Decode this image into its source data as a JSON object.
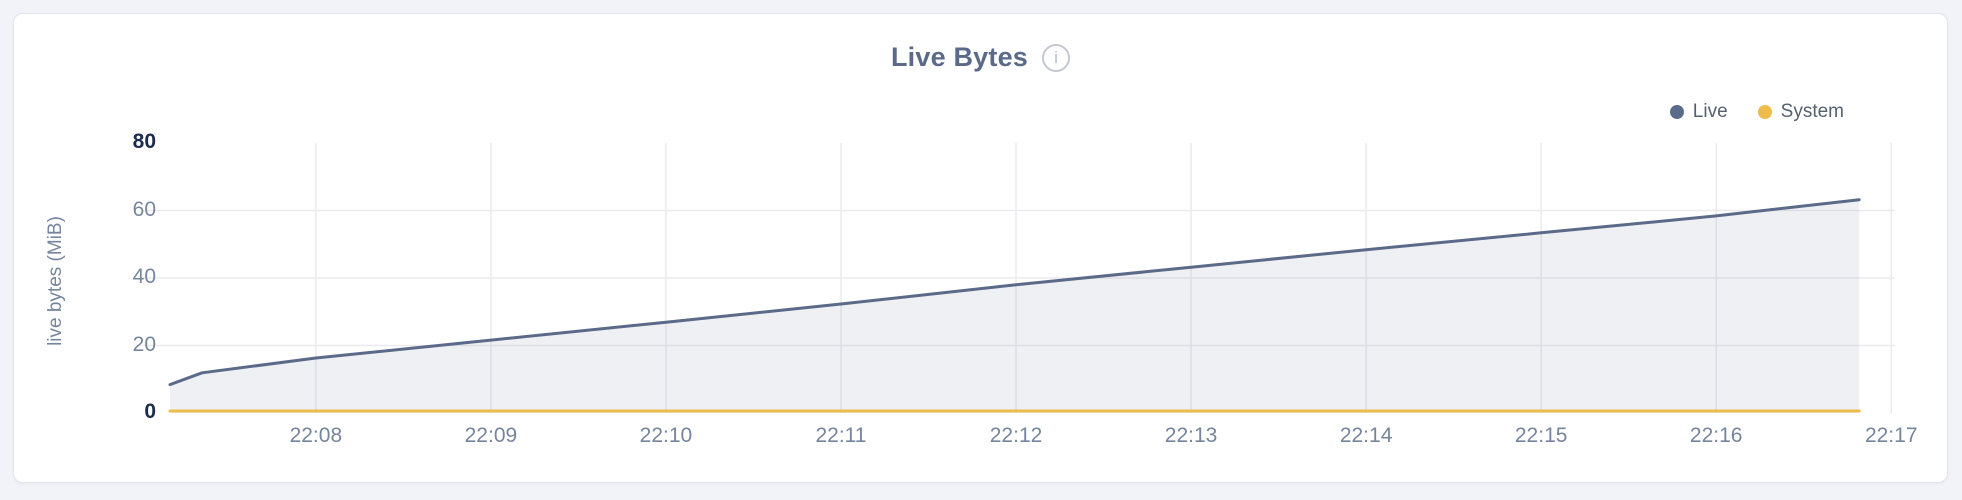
{
  "window": {
    "background": "#f2f3f8"
  },
  "card": {
    "background": "#ffffff",
    "border_color": "#e4e5e9"
  },
  "header": {
    "title": "Live Bytes",
    "info_glyph": "i"
  },
  "legend": {
    "items": [
      {
        "label": "Live",
        "color": "#5b6b8a"
      },
      {
        "label": "System",
        "color": "#edbc4c"
      }
    ]
  },
  "chart_data": {
    "type": "area",
    "title": "Live Bytes",
    "xlabel": "",
    "ylabel": "live bytes (MiB)",
    "ylim": [
      0,
      80
    ],
    "y_ticks": [
      0,
      20,
      40,
      60,
      80
    ],
    "x_ticks": [
      "22:08",
      "22:09",
      "22:10",
      "22:11",
      "22:12",
      "22:13",
      "22:14",
      "22:15",
      "22:16",
      "22:17"
    ],
    "x_domain": [
      "22:07:10",
      "22:17:03"
    ],
    "grid": true,
    "legend_position": "top-right",
    "series": [
      {
        "name": "Live",
        "color": "#5a6a88",
        "area_fill": "rgba(90,106,136,0.10)",
        "line_width": 3,
        "points": [
          [
            "22:07:10",
            8.4
          ],
          [
            "22:07:21",
            11.9
          ],
          [
            "22:08:00",
            16.3
          ],
          [
            "22:09:00",
            21.6
          ],
          [
            "22:10:00",
            26.9
          ],
          [
            "22:11:00",
            32.3
          ],
          [
            "22:12:00",
            38.0
          ],
          [
            "22:13:00",
            43.2
          ],
          [
            "22:14:00",
            48.4
          ],
          [
            "22:15:00",
            53.4
          ],
          [
            "22:16:00",
            58.4
          ],
          [
            "22:16:49",
            63.2
          ]
        ]
      },
      {
        "name": "System",
        "color": "#edbc4c",
        "area_fill": "none",
        "line_width": 3,
        "points": [
          [
            "22:07:10",
            0.6
          ],
          [
            "22:16:49",
            0.6
          ]
        ]
      }
    ],
    "style": {
      "grid_color": "#ebebef",
      "tick_label_color": "#76859e",
      "minmax_label_color": "#1b2c4f",
      "axis_title_color": "#76859e"
    }
  }
}
